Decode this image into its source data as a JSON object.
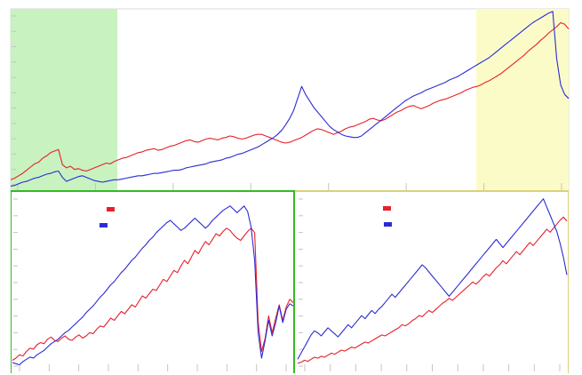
{
  "colors": {
    "series_a": "#e8202a",
    "series_b": "#2b2bd6",
    "zoom_left_fill": "#c8f2c0",
    "zoom_right_fill": "#fbfbc8",
    "divider": "#33bb22",
    "divider_right": "#d9d27a"
  },
  "chart_data": [
    {
      "id": "overview",
      "type": "line",
      "x": [
        0,
        1,
        2,
        3,
        4,
        5,
        6,
        7,
        8,
        9,
        10,
        11,
        12,
        13,
        14,
        15,
        16,
        17,
        18,
        19,
        20,
        21,
        22,
        23,
        24,
        25,
        26,
        27,
        28,
        29,
        30,
        31,
        32,
        33,
        34,
        35,
        36,
        37,
        38,
        39,
        40,
        41,
        42,
        43,
        44,
        45,
        46,
        47,
        48,
        49,
        50,
        51,
        52,
        53,
        54,
        55,
        56,
        57,
        58,
        59,
        60,
        61,
        62,
        63,
        64,
        65,
        66,
        67,
        68,
        69,
        70,
        71,
        72,
        73,
        74,
        75,
        76,
        77,
        78,
        79,
        80,
        81,
        82,
        83,
        84,
        85,
        86,
        87,
        88,
        89,
        90,
        91,
        92,
        93,
        94,
        95,
        96,
        97,
        98,
        99,
        100,
        101,
        102,
        103,
        104,
        105,
        106,
        107,
        108,
        109,
        110,
        111,
        112,
        113,
        114,
        115,
        116,
        117,
        118,
        119,
        120,
        121,
        122,
        123,
        124,
        125,
        126,
        127,
        128,
        129,
        130,
        131,
        132,
        133,
        134,
        135,
        136,
        137,
        138,
        139,
        140
      ],
      "series": [
        {
          "values": [
            1.3,
            1.5,
            1.8,
            2.1,
            2.5,
            2.9,
            3.3,
            3.5,
            4.0,
            4.3,
            4.7,
            4.9,
            5.1,
            3.2,
            2.8,
            3.0,
            2.6,
            2.7,
            2.5,
            2.4,
            2.6,
            2.8,
            3.0,
            3.2,
            3.4,
            3.3,
            3.6,
            3.8,
            4.0,
            4.1,
            4.3,
            4.5,
            4.7,
            4.8,
            5.0,
            5.1,
            5.2,
            5.0,
            5.1,
            5.3,
            5.5,
            5.6,
            5.8,
            6.0,
            6.2,
            6.3,
            6.1,
            6.0,
            6.2,
            6.4,
            6.5,
            6.4,
            6.3,
            6.5,
            6.6,
            6.8,
            6.7,
            6.5,
            6.4,
            6.5,
            6.7,
            6.9,
            7.0,
            7.0,
            6.8,
            6.6,
            6.4,
            6.2,
            6.0,
            5.9,
            6.0,
            6.2,
            6.4,
            6.6,
            6.9,
            7.2,
            7.5,
            7.7,
            7.6,
            7.4,
            7.2,
            7.0,
            7.2,
            7.4,
            7.7,
            7.9,
            8.0,
            8.2,
            8.4,
            8.6,
            8.9,
            9.0,
            8.8,
            8.7,
            8.9,
            9.2,
            9.5,
            9.8,
            10.0,
            10.3,
            10.5,
            10.6,
            10.4,
            10.2,
            10.4,
            10.6,
            10.9,
            11.1,
            11.3,
            11.4,
            11.6,
            11.8,
            12.0,
            12.2,
            12.5,
            12.7,
            12.9,
            13.0,
            13.2,
            13.5,
            13.7,
            14.0,
            14.3,
            14.6,
            15.0,
            15.4,
            15.8,
            16.2,
            16.6,
            17.0,
            17.5,
            17.9,
            18.3,
            18.8,
            19.2,
            19.7,
            20.1,
            20.5,
            21.0,
            20.8,
            20.2
          ]
        },
        {
          "values": [
            0.5,
            0.6,
            0.8,
            1.0,
            1.1,
            1.3,
            1.5,
            1.6,
            1.8,
            2.0,
            2.1,
            2.3,
            2.4,
            1.6,
            1.1,
            1.3,
            1.5,
            1.7,
            1.8,
            1.6,
            1.4,
            1.2,
            1.1,
            1.0,
            1.1,
            1.2,
            1.3,
            1.3,
            1.4,
            1.5,
            1.6,
            1.7,
            1.8,
            1.8,
            1.9,
            2.0,
            2.1,
            2.1,
            2.2,
            2.3,
            2.4,
            2.5,
            2.5,
            2.6,
            2.8,
            2.9,
            3.0,
            3.1,
            3.2,
            3.3,
            3.5,
            3.6,
            3.7,
            3.8,
            4.0,
            4.1,
            4.3,
            4.5,
            4.6,
            4.8,
            5.0,
            5.2,
            5.4,
            5.7,
            6.0,
            6.3,
            6.6,
            7.0,
            7.5,
            8.2,
            9.0,
            10.0,
            11.5,
            13.0,
            12.0,
            11.2,
            10.4,
            9.8,
            9.2,
            8.6,
            8.0,
            7.6,
            7.3,
            7.0,
            6.8,
            6.7,
            6.6,
            6.6,
            6.8,
            7.2,
            7.6,
            8.0,
            8.4,
            8.8,
            9.2,
            9.6,
            10.0,
            10.4,
            10.8,
            11.2,
            11.5,
            11.8,
            12.0,
            12.2,
            12.5,
            12.7,
            12.9,
            13.1,
            13.3,
            13.5,
            13.8,
            14.0,
            14.2,
            14.5,
            14.8,
            15.1,
            15.4,
            15.7,
            16.0,
            16.3,
            16.6,
            17.0,
            17.4,
            17.8,
            18.2,
            18.6,
            19.0,
            19.4,
            19.8,
            20.2,
            20.6,
            21.0,
            21.3,
            21.6,
            21.9,
            22.2,
            22.4,
            16.5,
            13.2,
            12.0,
            11.5
          ]
        }
      ],
      "xlim": [
        0,
        140
      ],
      "ylim": [
        0,
        22.5
      ]
    },
    {
      "id": "zoom-left",
      "type": "line",
      "x": [
        0,
        1,
        2,
        3,
        4,
        5,
        6,
        7,
        8,
        9,
        10,
        11,
        12,
        13,
        14,
        15,
        16,
        17,
        18,
        19,
        20,
        21,
        22,
        23,
        24,
        25,
        26,
        27,
        28,
        29,
        30,
        31,
        32,
        33,
        34,
        35,
        36,
        37,
        38,
        39,
        40,
        41,
        42,
        43,
        44,
        45,
        46,
        47,
        48,
        49,
        50,
        51,
        52,
        53,
        54,
        55,
        56,
        57,
        58,
        59,
        60,
        61,
        62,
        63,
        64,
        65,
        66,
        67,
        68,
        69,
        70,
        71,
        72,
        73,
        74,
        75,
        76,
        77,
        78,
        79,
        80
      ],
      "series": [
        {
          "values": [
            1.0,
            1.2,
            1.5,
            1.4,
            1.8,
            2.1,
            2.0,
            2.4,
            2.6,
            2.5,
            2.9,
            3.1,
            2.8,
            2.7,
            3.0,
            3.2,
            2.9,
            2.8,
            3.1,
            3.3,
            3.0,
            3.2,
            3.5,
            3.4,
            3.8,
            4.1,
            4.0,
            4.4,
            4.8,
            4.6,
            5.0,
            5.4,
            5.2,
            5.6,
            6.0,
            5.8,
            6.3,
            6.8,
            6.6,
            7.0,
            7.4,
            7.3,
            7.8,
            8.3,
            8.1,
            8.6,
            9.1,
            8.9,
            9.5,
            10.0,
            9.7,
            10.3,
            10.9,
            10.6,
            11.2,
            11.7,
            11.4,
            11.9,
            12.4,
            12.2,
            12.6,
            12.9,
            12.7,
            12.3,
            12.0,
            11.8,
            12.2,
            12.6,
            12.9,
            12.5,
            4.5,
            1.8,
            3.0,
            5.0,
            3.5,
            4.8,
            6.0,
            4.6,
            5.8,
            6.5,
            6.2
          ]
        },
        {
          "values": [
            0.8,
            0.7,
            0.6,
            0.9,
            1.1,
            1.3,
            1.2,
            1.5,
            1.7,
            1.9,
            2.2,
            2.5,
            2.7,
            2.9,
            3.2,
            3.5,
            3.7,
            4.0,
            4.3,
            4.6,
            4.9,
            5.3,
            5.6,
            5.9,
            6.3,
            6.7,
            7.0,
            7.4,
            7.8,
            8.1,
            8.5,
            8.9,
            9.2,
            9.6,
            10.0,
            10.3,
            10.7,
            11.1,
            11.4,
            11.8,
            12.1,
            12.5,
            12.8,
            13.1,
            13.4,
            13.6,
            13.3,
            13.0,
            12.7,
            12.9,
            13.2,
            13.5,
            13.8,
            13.5,
            13.2,
            12.9,
            13.2,
            13.6,
            13.9,
            14.2,
            14.5,
            14.7,
            14.9,
            14.6,
            14.3,
            14.6,
            14.9,
            14.4,
            13.0,
            10.0,
            3.5,
            1.2,
            2.8,
            4.6,
            3.2,
            4.4,
            5.9,
            4.4,
            5.6,
            6.1,
            5.9
          ]
        }
      ],
      "xlim": [
        0,
        80
      ],
      "ylim": [
        0,
        16
      ]
    },
    {
      "id": "zoom-right",
      "type": "line",
      "x": [
        0,
        1,
        2,
        3,
        4,
        5,
        6,
        7,
        8,
        9,
        10,
        11,
        12,
        13,
        14,
        15,
        16,
        17,
        18,
        19,
        20,
        21,
        22,
        23,
        24,
        25,
        26,
        27,
        28,
        29,
        30,
        31,
        32,
        33,
        34,
        35,
        36,
        37,
        38,
        39,
        40,
        41,
        42,
        43,
        44,
        45,
        46,
        47,
        48,
        49,
        50,
        51,
        52,
        53,
        54,
        55,
        56,
        57,
        58,
        59,
        60,
        61,
        62,
        63,
        64,
        65,
        66,
        67,
        68,
        69,
        70,
        71,
        72,
        73,
        74,
        75,
        76,
        77,
        78,
        79,
        80
      ],
      "series": [
        {
          "values": [
            0.8,
            0.9,
            1.1,
            1.0,
            1.2,
            1.4,
            1.3,
            1.5,
            1.4,
            1.6,
            1.8,
            1.7,
            1.9,
            2.1,
            2.0,
            2.2,
            2.4,
            2.3,
            2.5,
            2.7,
            2.9,
            2.8,
            3.0,
            3.2,
            3.4,
            3.6,
            3.5,
            3.7,
            3.9,
            4.1,
            4.3,
            4.6,
            4.5,
            4.7,
            5.0,
            5.2,
            5.5,
            5.4,
            5.7,
            6.0,
            5.8,
            6.1,
            6.4,
            6.7,
            6.9,
            7.2,
            7.0,
            7.3,
            7.6,
            7.9,
            8.2,
            8.5,
            8.8,
            8.6,
            8.9,
            9.3,
            9.6,
            9.4,
            9.8,
            10.2,
            10.5,
            10.9,
            10.6,
            11.0,
            11.4,
            11.8,
            11.5,
            11.9,
            12.3,
            12.7,
            12.4,
            12.8,
            13.2,
            13.6,
            14.0,
            13.7,
            14.1,
            14.5,
            14.9,
            15.2,
            14.8
          ]
        },
        {
          "values": [
            1.2,
            1.8,
            2.4,
            3.0,
            3.6,
            4.0,
            3.8,
            3.5,
            3.9,
            4.3,
            4.0,
            3.7,
            3.4,
            3.8,
            4.2,
            4.6,
            4.3,
            4.7,
            5.1,
            5.5,
            5.2,
            5.6,
            6.0,
            5.7,
            6.1,
            6.4,
            6.8,
            7.2,
            7.6,
            7.3,
            7.7,
            8.1,
            8.5,
            8.9,
            9.3,
            9.7,
            10.1,
            10.5,
            10.2,
            9.8,
            9.4,
            9.0,
            8.6,
            8.2,
            7.8,
            7.4,
            7.8,
            8.2,
            8.6,
            9.0,
            9.4,
            9.8,
            10.2,
            10.6,
            11.0,
            11.4,
            11.8,
            12.2,
            12.6,
            13.0,
            12.6,
            12.2,
            12.6,
            13.0,
            13.4,
            13.8,
            14.2,
            14.6,
            15.0,
            15.4,
            15.8,
            16.2,
            16.6,
            17.0,
            16.2,
            15.4,
            14.6,
            13.8,
            12.6,
            11.2,
            9.5
          ]
        }
      ],
      "xlim": [
        0,
        80
      ],
      "ylim": [
        0,
        17.5
      ]
    }
  ]
}
